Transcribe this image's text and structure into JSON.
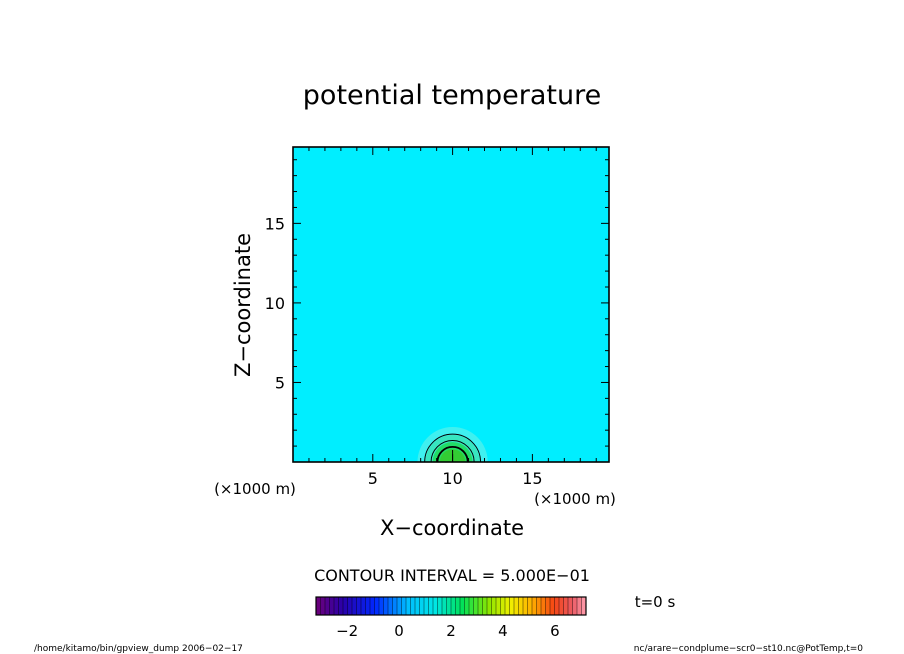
{
  "chart_data": {
    "type": "heatmap",
    "title": "potential temperature",
    "xlabel": "X−coordinate",
    "ylabel": "Z−coordinate",
    "x_unit": "(×1000 m)",
    "y_unit": "(×1000 m)",
    "xlim": [
      0,
      19.8
    ],
    "ylim": [
      0,
      19.8
    ],
    "x_ticks": [
      5,
      10,
      15
    ],
    "y_ticks": [
      5,
      10,
      15
    ],
    "x_tick_labels": [
      "5",
      "10",
      "15"
    ],
    "y_tick_labels": [
      "5",
      "10",
      "15"
    ],
    "background_value": 0,
    "background_color": "#00eeff",
    "anomaly": {
      "center_x": 10,
      "center_z": 0,
      "fill_levels": [
        {
          "value_min": 0.5,
          "radius": 2.2,
          "color": "#3ff0f0"
        },
        {
          "value_min": 1.0,
          "radius": 1.7,
          "color": "#38e6c0"
        },
        {
          "value_min": 1.5,
          "radius": 1.25,
          "color": "#22dd66"
        },
        {
          "value_min": 2.0,
          "radius": 0.8,
          "color": "#33cc33"
        }
      ],
      "contour_radii": [
        1.75,
        1.35,
        0.95
      ]
    },
    "contour_interval_text": "CONTOUR INTERVAL = 5.000E−01",
    "colorbar": {
      "min": -3.2,
      "max": 7.2,
      "tick_labels": [
        "−2",
        "0",
        "2",
        "4",
        "6"
      ],
      "tick_values": [
        -2,
        0,
        2,
        4,
        6
      ]
    },
    "time_label": "t=0 s"
  },
  "footer": {
    "left": "/home/kitamo/bin/gpview_dump   2006−02−17",
    "right": "nc/arare−condplume−scr0−st10.nc@PotTemp,t=0"
  }
}
